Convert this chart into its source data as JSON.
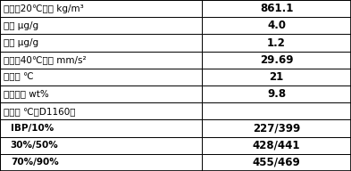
{
  "rows": [
    {
      "label": "密度（20℃）， kg/m³",
      "value": "861.1",
      "bold_label": false,
      "indent": false
    },
    {
      "label": "硫， μg/g",
      "value": "4.0",
      "bold_label": false,
      "indent": false
    },
    {
      "label": "氮， μg/g",
      "value": "1.2",
      "bold_label": false,
      "indent": false
    },
    {
      "label": "粘度（40℃）， mm/s²",
      "value": "29.69",
      "bold_label": false,
      "indent": false
    },
    {
      "label": "倒点， ℃",
      "value": "21",
      "bold_label": false,
      "indent": false
    },
    {
      "label": "蜡含量， wt%",
      "value": "9.8",
      "bold_label": false,
      "indent": false
    },
    {
      "label": "馏程， ℃（D1160）",
      "value": "",
      "bold_label": false,
      "indent": false
    },
    {
      "label": "IBP/10%",
      "value": "227/399",
      "bold_label": true,
      "indent": true
    },
    {
      "label": "30%/50%",
      "value": "428/441",
      "bold_label": true,
      "indent": true
    },
    {
      "label": "70%/90%",
      "value": "455/469",
      "bold_label": true,
      "indent": true
    }
  ],
  "col_split": 0.575,
  "border_color": "#000000",
  "bg_color": "#ffffff",
  "text_color": "#000000",
  "label_fontsize": 7.5,
  "value_fontsize": 8.5
}
